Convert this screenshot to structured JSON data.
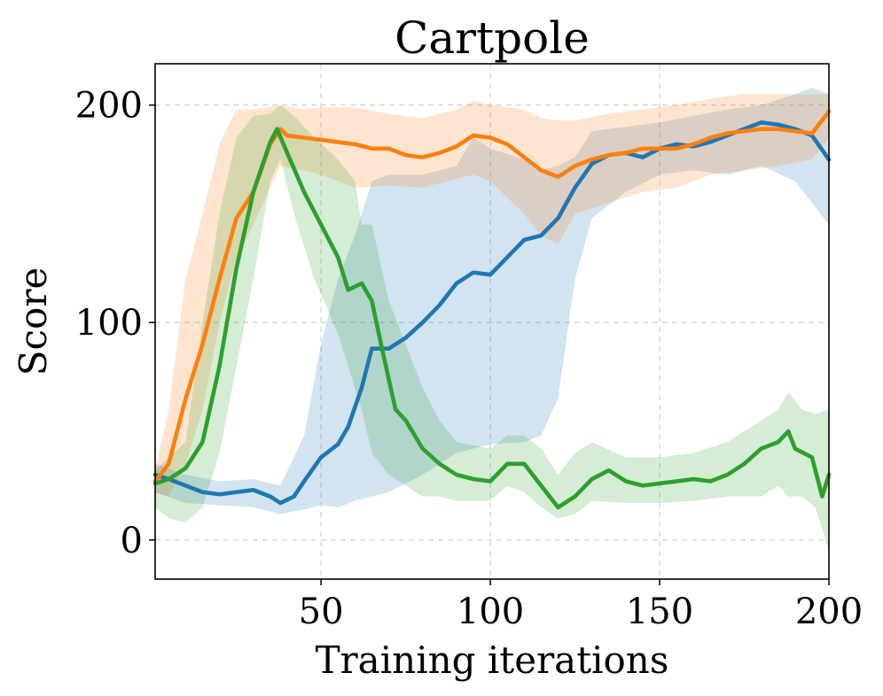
{
  "chart_data": {
    "type": "line",
    "title": "Cartpole",
    "xlabel": "Training iterations",
    "ylabel": "Score",
    "xlim": [
      1,
      200
    ],
    "ylim": [
      -18,
      219
    ],
    "xticks": [
      50,
      100,
      150,
      200
    ],
    "yticks": [
      0,
      100,
      200
    ],
    "grid": true,
    "legend": "none",
    "series": [
      {
        "name": "blue",
        "color": "#1f77b4",
        "points": [
          [
            1,
            30
          ],
          [
            5,
            28
          ],
          [
            10,
            25
          ],
          [
            15,
            22
          ],
          [
            20,
            21
          ],
          [
            25,
            22
          ],
          [
            30,
            23
          ],
          [
            35,
            20
          ],
          [
            38,
            17
          ],
          [
            42,
            20
          ],
          [
            45,
            27
          ],
          [
            50,
            38
          ],
          [
            55,
            44
          ],
          [
            58,
            52
          ],
          [
            62,
            70
          ],
          [
            65,
            88
          ],
          [
            70,
            88
          ],
          [
            75,
            93
          ],
          [
            80,
            100
          ],
          [
            85,
            108
          ],
          [
            90,
            118
          ],
          [
            95,
            123
          ],
          [
            100,
            122
          ],
          [
            105,
            130
          ],
          [
            110,
            138
          ],
          [
            115,
            140
          ],
          [
            120,
            148
          ],
          [
            125,
            162
          ],
          [
            130,
            173
          ],
          [
            135,
            177
          ],
          [
            140,
            178
          ],
          [
            145,
            176
          ],
          [
            150,
            180
          ],
          [
            155,
            182
          ],
          [
            160,
            181
          ],
          [
            165,
            183
          ],
          [
            170,
            186
          ],
          [
            175,
            189
          ],
          [
            180,
            192
          ],
          [
            185,
            191
          ],
          [
            190,
            189
          ],
          [
            195,
            186
          ],
          [
            200,
            175
          ]
        ],
        "band": [
          [
            1,
            22,
            35
          ],
          [
            10,
            17,
            30
          ],
          [
            20,
            16,
            27
          ],
          [
            30,
            15,
            28
          ],
          [
            38,
            12,
            25
          ],
          [
            45,
            14,
            48
          ],
          [
            50,
            16,
            90
          ],
          [
            55,
            15,
            120
          ],
          [
            60,
            18,
            140
          ],
          [
            65,
            20,
            165
          ],
          [
            70,
            22,
            168
          ],
          [
            80,
            30,
            168
          ],
          [
            90,
            40,
            172
          ],
          [
            95,
            42,
            185
          ],
          [
            100,
            44,
            180
          ],
          [
            110,
            45,
            175
          ],
          [
            115,
            48,
            170
          ],
          [
            120,
            65,
            172
          ],
          [
            125,
            120,
            176
          ],
          [
            130,
            148,
            188
          ],
          [
            140,
            160,
            190
          ],
          [
            150,
            168,
            192
          ],
          [
            160,
            170,
            195
          ],
          [
            170,
            168,
            198
          ],
          [
            180,
            172,
            200
          ],
          [
            190,
            165,
            205
          ],
          [
            195,
            155,
            208
          ],
          [
            200,
            145,
            205
          ]
        ]
      },
      {
        "name": "orange",
        "color": "#ff7f0e",
        "points": [
          [
            1,
            27
          ],
          [
            5,
            35
          ],
          [
            10,
            65
          ],
          [
            15,
            90
          ],
          [
            20,
            120
          ],
          [
            25,
            148
          ],
          [
            30,
            160
          ],
          [
            35,
            182
          ],
          [
            38,
            189
          ],
          [
            40,
            186
          ],
          [
            45,
            185
          ],
          [
            50,
            184
          ],
          [
            55,
            183
          ],
          [
            60,
            182
          ],
          [
            65,
            180
          ],
          [
            70,
            180
          ],
          [
            75,
            177
          ],
          [
            80,
            176
          ],
          [
            85,
            178
          ],
          [
            90,
            181
          ],
          [
            95,
            186
          ],
          [
            100,
            185
          ],
          [
            105,
            182
          ],
          [
            110,
            176
          ],
          [
            115,
            170
          ],
          [
            120,
            167
          ],
          [
            125,
            172
          ],
          [
            130,
            175
          ],
          [
            135,
            177
          ],
          [
            140,
            178
          ],
          [
            145,
            180
          ],
          [
            150,
            180
          ],
          [
            155,
            180
          ],
          [
            160,
            182
          ],
          [
            165,
            185
          ],
          [
            170,
            187
          ],
          [
            175,
            188
          ],
          [
            180,
            189
          ],
          [
            185,
            189
          ],
          [
            190,
            188
          ],
          [
            195,
            187
          ],
          [
            200,
            197
          ]
        ],
        "band": [
          [
            1,
            22,
            32
          ],
          [
            5,
            20,
            60
          ],
          [
            10,
            35,
            120
          ],
          [
            15,
            60,
            150
          ],
          [
            20,
            100,
            182
          ],
          [
            25,
            130,
            198
          ],
          [
            30,
            145,
            198
          ],
          [
            38,
            172,
            200
          ],
          [
            45,
            170,
            198
          ],
          [
            50,
            168,
            199
          ],
          [
            60,
            162,
            199
          ],
          [
            70,
            163,
            196
          ],
          [
            80,
            162,
            194
          ],
          [
            90,
            166,
            198
          ],
          [
            95,
            168,
            202
          ],
          [
            100,
            165,
            200
          ],
          [
            110,
            150,
            198
          ],
          [
            115,
            140,
            194
          ],
          [
            120,
            136,
            193
          ],
          [
            125,
            150,
            193
          ],
          [
            135,
            155,
            196
          ],
          [
            145,
            160,
            198
          ],
          [
            155,
            162,
            200
          ],
          [
            165,
            168,
            203
          ],
          [
            175,
            170,
            205
          ],
          [
            185,
            172,
            205
          ],
          [
            195,
            175,
            205
          ],
          [
            200,
            185,
            205
          ]
        ]
      },
      {
        "name": "green",
        "color": "#2ca02c",
        "points": [
          [
            1,
            26
          ],
          [
            5,
            28
          ],
          [
            10,
            33
          ],
          [
            15,
            45
          ],
          [
            20,
            80
          ],
          [
            25,
            125
          ],
          [
            30,
            160
          ],
          [
            35,
            183
          ],
          [
            37,
            189
          ],
          [
            40,
            178
          ],
          [
            45,
            160
          ],
          [
            50,
            145
          ],
          [
            55,
            130
          ],
          [
            58,
            115
          ],
          [
            62,
            118
          ],
          [
            65,
            110
          ],
          [
            68,
            88
          ],
          [
            72,
            60
          ],
          [
            75,
            55
          ],
          [
            80,
            42
          ],
          [
            85,
            35
          ],
          [
            90,
            30
          ],
          [
            95,
            28
          ],
          [
            100,
            27
          ],
          [
            105,
            35
          ],
          [
            110,
            35
          ],
          [
            115,
            25
          ],
          [
            120,
            15
          ],
          [
            125,
            20
          ],
          [
            130,
            28
          ],
          [
            135,
            32
          ],
          [
            140,
            27
          ],
          [
            145,
            25
          ],
          [
            150,
            26
          ],
          [
            155,
            27
          ],
          [
            160,
            28
          ],
          [
            165,
            27
          ],
          [
            170,
            30
          ],
          [
            175,
            35
          ],
          [
            180,
            42
          ],
          [
            185,
            45
          ],
          [
            188,
            50
          ],
          [
            190,
            42
          ],
          [
            195,
            38
          ],
          [
            198,
            20
          ],
          [
            200,
            30
          ]
        ],
        "band": [
          [
            1,
            15,
            32
          ],
          [
            5,
            10,
            38
          ],
          [
            10,
            8,
            45
          ],
          [
            15,
            15,
            100
          ],
          [
            20,
            40,
            150
          ],
          [
            25,
            80,
            185
          ],
          [
            30,
            120,
            195
          ],
          [
            35,
            165,
            196
          ],
          [
            38,
            175,
            200
          ],
          [
            42,
            150,
            195
          ],
          [
            48,
            120,
            185
          ],
          [
            55,
            95,
            175
          ],
          [
            60,
            70,
            165
          ],
          [
            62,
            60,
            145
          ],
          [
            65,
            40,
            145
          ],
          [
            70,
            30,
            110
          ],
          [
            75,
            25,
            90
          ],
          [
            80,
            20,
            70
          ],
          [
            85,
            20,
            55
          ],
          [
            90,
            18,
            45
          ],
          [
            100,
            18,
            42
          ],
          [
            105,
            25,
            48
          ],
          [
            110,
            22,
            48
          ],
          [
            115,
            15,
            42
          ],
          [
            120,
            10,
            30
          ],
          [
            125,
            12,
            40
          ],
          [
            130,
            18,
            45
          ],
          [
            140,
            17,
            38
          ],
          [
            150,
            17,
            38
          ],
          [
            160,
            18,
            40
          ],
          [
            170,
            20,
            45
          ],
          [
            180,
            20,
            55
          ],
          [
            185,
            25,
            60
          ],
          [
            188,
            20,
            68
          ],
          [
            192,
            20,
            60
          ],
          [
            196,
            15,
            58
          ],
          [
            200,
            -5,
            60
          ]
        ]
      }
    ]
  }
}
